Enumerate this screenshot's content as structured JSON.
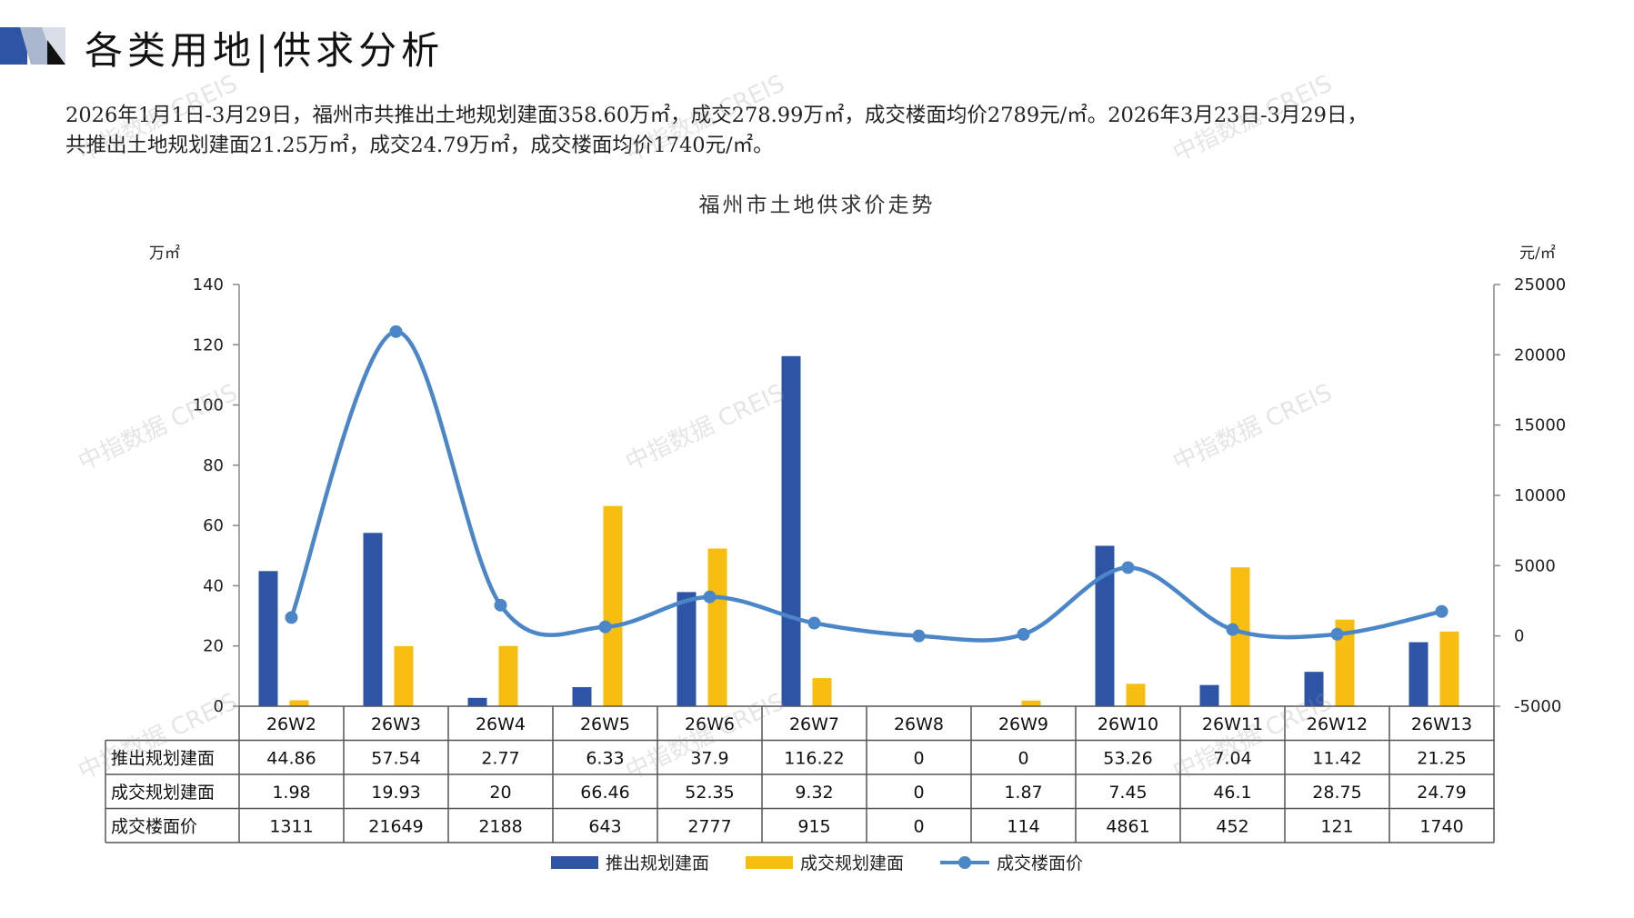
{
  "header": {
    "title": "各类用地|供求分析"
  },
  "summary": {
    "line1": "2026年1月1日-3月29日，福州市共推出土地规划建面358.60万㎡，成交278.99万㎡，成交楼面均价2789元/㎡。2026年3月23日-3月29日，",
    "line2": "共推出土地规划建面21.25万㎡，成交24.79万㎡，成交楼面均价1740元/㎡。"
  },
  "watermark": "中指数据 CREIS",
  "colors": {
    "supply": "#2e55a5",
    "deal": "#f7bd11",
    "price": "#4a86c8",
    "axis": "#888888",
    "grid": "#555555"
  },
  "chart_data": {
    "type": "bar",
    "title": "福州市土地供求价走势",
    "y_unit_left": "万㎡",
    "y_unit_right": "元/㎡",
    "categories": [
      "26W2",
      "26W3",
      "26W4",
      "26W5",
      "26W6",
      "26W7",
      "26W8",
      "26W9",
      "26W10",
      "26W11",
      "26W12",
      "26W13"
    ],
    "ylim_left": [
      0,
      140
    ],
    "yticks_left": [
      0,
      20,
      40,
      60,
      80,
      100,
      120,
      140
    ],
    "ylim_right": [
      -5000,
      25000
    ],
    "yticks_right": [
      -5000,
      0,
      5000,
      10000,
      15000,
      20000,
      25000
    ],
    "series": [
      {
        "name": "推出规划建面",
        "type": "bar",
        "axis": "left",
        "values": [
          44.86,
          57.54,
          2.77,
          6.33,
          37.9,
          116.22,
          0,
          0,
          53.26,
          7.04,
          11.42,
          21.25
        ],
        "labels": [
          "44.86",
          "57.54",
          "2.77",
          "6.33",
          "37.9",
          "116.22",
          "0",
          "0",
          "53.26",
          "7.04",
          "11.42",
          "21.25"
        ]
      },
      {
        "name": "成交规划建面",
        "type": "bar",
        "axis": "left",
        "values": [
          1.98,
          19.93,
          20,
          66.46,
          52.35,
          9.32,
          0,
          1.87,
          7.45,
          46.1,
          28.75,
          24.79
        ],
        "labels": [
          "1.98",
          "19.93",
          "20",
          "66.46",
          "52.35",
          "9.32",
          "0",
          "1.87",
          "7.45",
          "46.1",
          "28.75",
          "24.79"
        ]
      },
      {
        "name": "成交楼面价",
        "type": "line",
        "axis": "right",
        "values": [
          1311,
          21649,
          2188,
          643,
          2777,
          915,
          0,
          114,
          4861,
          452,
          121,
          1740
        ],
        "labels": [
          "1311",
          "21649",
          "2188",
          "643",
          "2777",
          "915",
          "0",
          "114",
          "4861",
          "452",
          "121",
          "1740"
        ]
      }
    ],
    "table_row_labels": [
      "推出规划建面",
      "成交规划建面",
      "成交楼面价"
    ],
    "legend_position": "bottom"
  }
}
